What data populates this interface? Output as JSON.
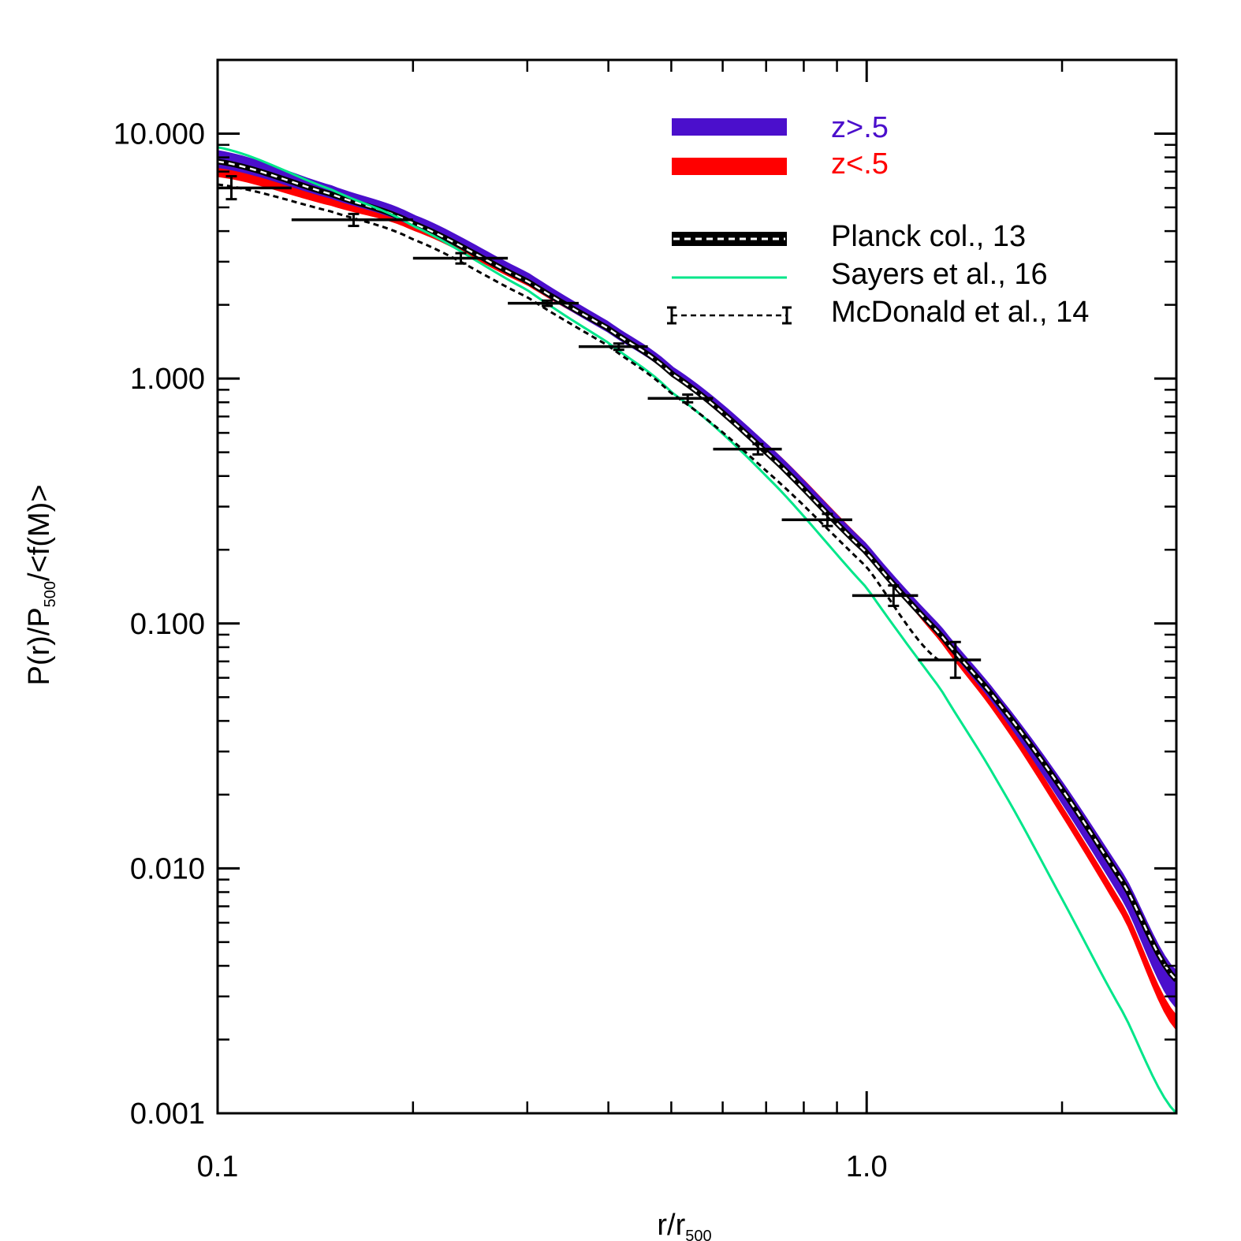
{
  "chart_data": {
    "type": "line",
    "xlabel": {
      "main": "r/r",
      "sub": "500"
    },
    "ylabel": {
      "main1": "P(r)/P",
      "sub": "500",
      "main2": "/<f(M)>"
    },
    "xscale": "log",
    "yscale": "log",
    "xlim": [
      0.1,
      3.0
    ],
    "ylim": [
      0.001,
      20
    ],
    "x_ticks": [
      {
        "value": 0.1,
        "label": "0.1"
      },
      {
        "value": 1.0,
        "label": "1.0"
      }
    ],
    "y_ticks": [
      {
        "value": 0.001,
        "label": "0.001"
      },
      {
        "value": 0.01,
        "label": "0.010"
      },
      {
        "value": 0.1,
        "label": "0.100"
      },
      {
        "value": 1.0,
        "label": "1.000"
      },
      {
        "value": 10.0,
        "label": "10.000"
      }
    ],
    "grid": false,
    "legend_position": "top-right",
    "series": [
      {
        "name": "z>.5",
        "kind": "band",
        "color": "#4B0FCC",
        "x": [
          0.1,
          0.15,
          0.2,
          0.3,
          0.4,
          0.5,
          0.7,
          1.0,
          1.3,
          1.6,
          2.0,
          2.5,
          3.0
        ],
        "y_low": [
          7.3,
          5.45,
          4.2,
          2.45,
          1.55,
          1.03,
          0.5,
          0.195,
          0.088,
          0.044,
          0.0185,
          0.0072,
          0.0027
        ],
        "y_high": [
          8.5,
          6.1,
          4.65,
          2.7,
          1.7,
          1.12,
          0.54,
          0.21,
          0.097,
          0.05,
          0.0225,
          0.0092,
          0.0038
        ]
      },
      {
        "name": "z<.5",
        "kind": "band",
        "color": "#FF0000",
        "x": [
          0.1,
          0.15,
          0.2,
          0.3,
          0.4,
          0.5,
          0.7,
          1.0,
          1.3,
          1.6,
          2.0,
          2.5,
          3.0
        ],
        "y_low": [
          6.7,
          5.1,
          4.05,
          2.42,
          1.56,
          1.04,
          0.51,
          0.2,
          0.085,
          0.041,
          0.0165,
          0.0062,
          0.0022
        ],
        "y_high": [
          7.3,
          5.5,
          4.35,
          2.6,
          1.67,
          1.1,
          0.54,
          0.21,
          0.09,
          0.044,
          0.0178,
          0.0068,
          0.0025
        ]
      },
      {
        "name": "Planck col., 13",
        "kind": "line",
        "color": "#000000",
        "x": [
          0.1,
          0.15,
          0.2,
          0.3,
          0.4,
          0.5,
          0.7,
          1.0,
          1.3,
          1.6,
          2.0,
          2.5,
          3.0
        ],
        "y": [
          7.7,
          5.65,
          4.3,
          2.5,
          1.6,
          1.05,
          0.5,
          0.195,
          0.09,
          0.047,
          0.021,
          0.0085,
          0.0035
        ]
      },
      {
        "name": "Sayers et al., 16",
        "kind": "line",
        "color": "#00E68A",
        "x": [
          0.1,
          0.15,
          0.2,
          0.3,
          0.4,
          0.5,
          0.7,
          1.0,
          1.3,
          1.6,
          2.0,
          2.5,
          3.0
        ],
        "y": [
          8.8,
          5.9,
          4.2,
          2.3,
          1.4,
          0.88,
          0.4,
          0.14,
          0.054,
          0.022,
          0.0075,
          0.0025,
          0.001
        ]
      },
      {
        "name": "McDonald et al., 14",
        "kind": "line-errorbars",
        "color": "#000000",
        "x": [
          0.1,
          0.15,
          0.2,
          0.3,
          0.4,
          0.5,
          0.7,
          1.0,
          1.3
        ],
        "y": [
          6.2,
          4.8,
          3.7,
          2.15,
          1.36,
          0.87,
          0.42,
          0.17,
          0.07
        ],
        "points": [
          {
            "x": 0.105,
            "y": 6.0,
            "xerr": [
              0.1,
              0.13
            ],
            "yerr": [
              5.4,
              6.7
            ]
          },
          {
            "x": 0.162,
            "y": 4.45,
            "xerr": [
              0.13,
              0.2
            ],
            "yerr": [
              4.2,
              4.7
            ]
          },
          {
            "x": 0.237,
            "y": 3.1,
            "xerr": [
              0.2,
              0.28
            ],
            "yerr": [
              2.95,
              3.25
            ]
          },
          {
            "x": 0.322,
            "y": 2.03,
            "xerr": [
              0.28,
              0.36
            ],
            "yerr": [
              1.98,
              2.08
            ]
          },
          {
            "x": 0.415,
            "y": 1.35,
            "xerr": [
              0.36,
              0.46
            ],
            "yerr": [
              1.31,
              1.39
            ]
          },
          {
            "x": 0.53,
            "y": 0.83,
            "xerr": [
              0.46,
              0.58
            ],
            "yerr": [
              0.8,
              0.86
            ]
          },
          {
            "x": 0.68,
            "y": 0.515,
            "xerr": [
              0.58,
              0.74
            ],
            "yerr": [
              0.49,
              0.54
            ]
          },
          {
            "x": 0.87,
            "y": 0.265,
            "xerr": [
              0.74,
              0.95
            ],
            "yerr": [
              0.25,
              0.28
            ]
          },
          {
            "x": 1.1,
            "y": 0.13,
            "xerr": [
              0.95,
              1.2
            ],
            "yerr": [
              0.118,
              0.143
            ]
          },
          {
            "x": 1.37,
            "y": 0.071,
            "xerr": [
              1.2,
              1.5
            ],
            "yerr": [
              0.06,
              0.084
            ]
          }
        ]
      }
    ]
  }
}
